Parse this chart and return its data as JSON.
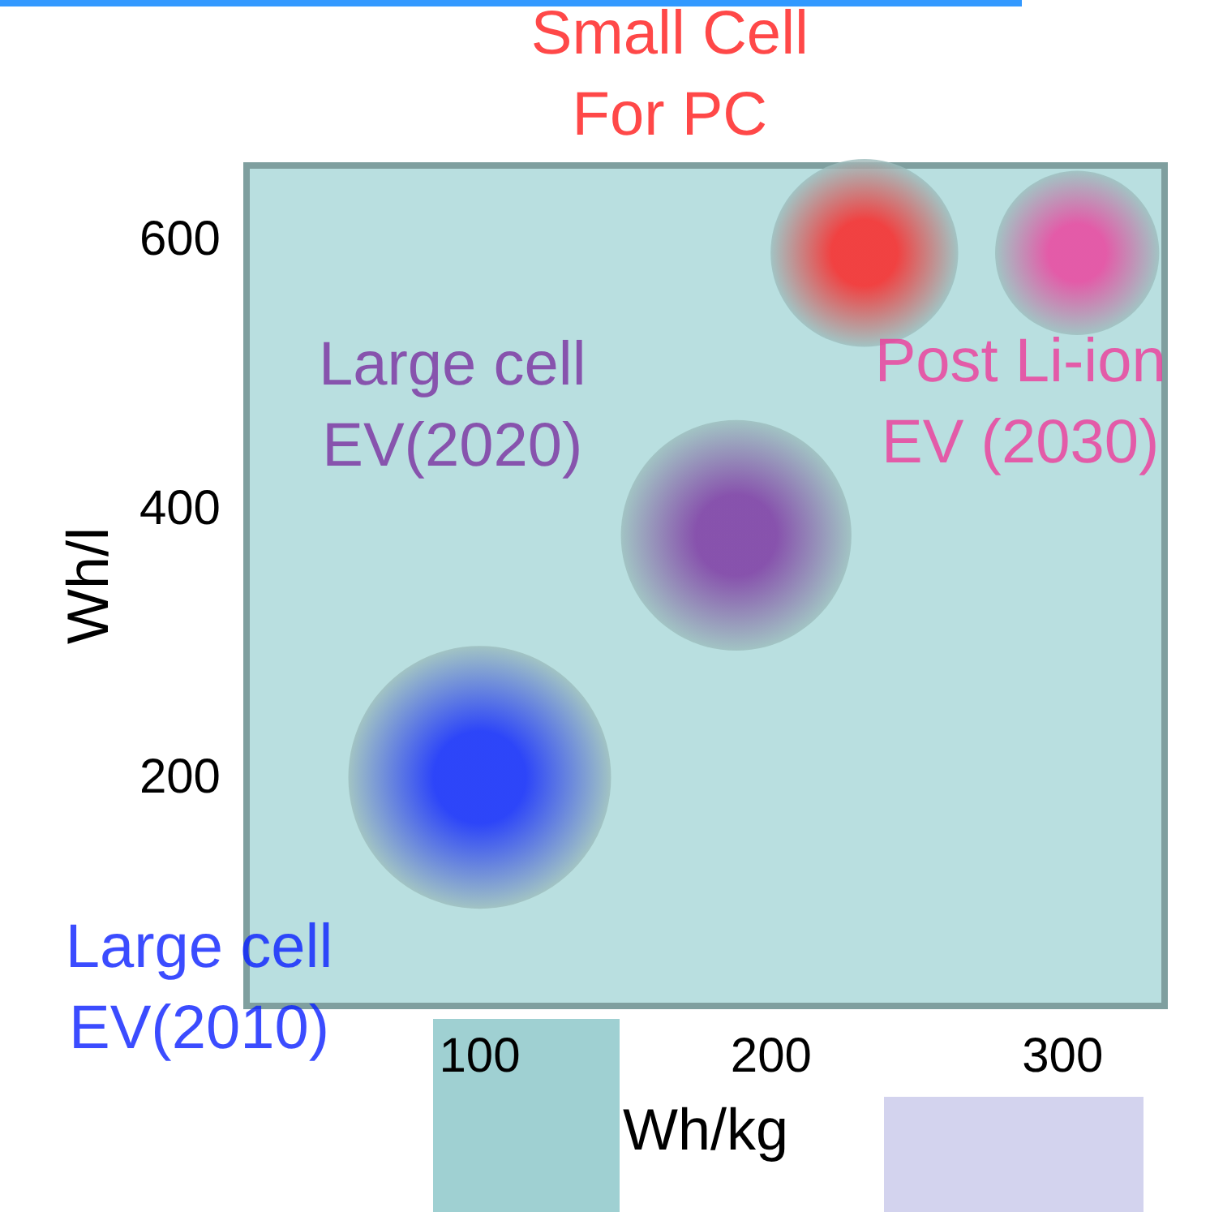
{
  "chart_data": {
    "type": "bubble",
    "xlabel": "Wh/kg",
    "ylabel": "Wh/l",
    "xlim": [
      20,
      335
    ],
    "ylim": [
      30,
      655
    ],
    "xticks": [
      100,
      200,
      300
    ],
    "yticks": [
      200,
      400,
      600
    ],
    "grid": false,
    "legend": false,
    "series": [
      {
        "name": "Large cell\nEV(2010)",
        "color": "#0a1fff",
        "x": [
          100
        ],
        "values": [
          200
        ],
        "sizes": [
          1
        ]
      },
      {
        "name": "Large cell\nEV(2020)",
        "color": "#7b2fa0",
        "x": [
          188
        ],
        "values": [
          380
        ],
        "sizes": [
          0.77
        ]
      },
      {
        "name": "Small Cell\nFor PC",
        "color": "#ff1a1a",
        "x": [
          232
        ],
        "values": [
          590
        ],
        "sizes": [
          0.51
        ]
      },
      {
        "name": "Post Li-ion\nEV (2030)",
        "color": "#ee3a9a",
        "x": [
          305
        ],
        "values": [
          590
        ],
        "sizes": [
          0.39
        ]
      }
    ]
  }
}
